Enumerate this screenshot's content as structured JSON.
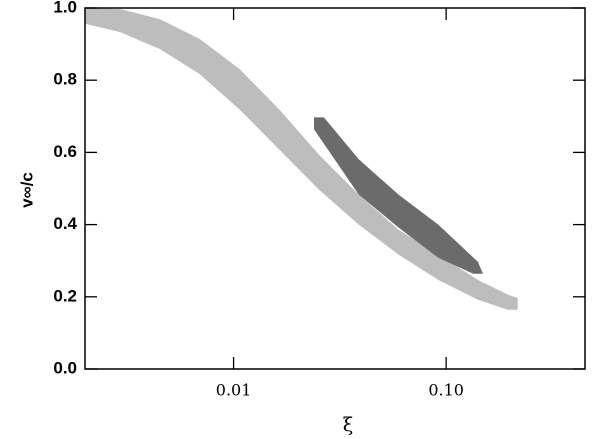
{
  "chart_data": {
    "type": "region",
    "xlabel": "ξ",
    "ylabel": "v∞/c",
    "xscale": "log",
    "xlim": [
      0.002,
      0.45
    ],
    "ylim": [
      0,
      1.0
    ],
    "xticks": [
      {
        "value": 0.01,
        "label": "0.01"
      },
      {
        "value": 0.1,
        "label": "0.10"
      }
    ],
    "yticks": [
      {
        "value": 0,
        "label": "0.0"
      },
      0.2,
      0.4,
      0.6,
      0.8,
      {
        "value": 1.0,
        "label": "1.0"
      }
    ],
    "regions": [
      {
        "color": "#bdbdbd",
        "x": [
          0.00201,
          0.00293,
          0.00451,
          0.00693,
          0.01067,
          0.0164,
          0.0252,
          0.0388,
          0.0597,
          0.0918,
          0.141,
          0.195,
          0.217,
          0.217,
          0.195,
          0.141,
          0.0918,
          0.0597,
          0.0388,
          0.0252,
          0.0164,
          0.01067,
          0.00693,
          0.00451,
          0.00293,
          0.00201
        ],
        "y": [
          1.0,
          0.997,
          0.969,
          0.914,
          0.831,
          0.719,
          0.594,
          0.483,
          0.386,
          0.317,
          0.247,
          0.206,
          0.197,
          0.164,
          0.164,
          0.192,
          0.247,
          0.317,
          0.4,
          0.497,
          0.608,
          0.719,
          0.817,
          0.886,
          0.933,
          0.956
        ]
      },
      {
        "color": "#6b6b6b",
        "x": [
          0.0239,
          0.0266,
          0.0388,
          0.0597,
          0.0918,
          0.141,
          0.149,
          0.134,
          0.0918,
          0.0597,
          0.0388,
          0.0239
        ],
        "y": [
          0.697,
          0.697,
          0.581,
          0.483,
          0.4,
          0.297,
          0.264,
          0.264,
          0.308,
          0.392,
          0.483,
          0.664
        ]
      }
    ]
  }
}
